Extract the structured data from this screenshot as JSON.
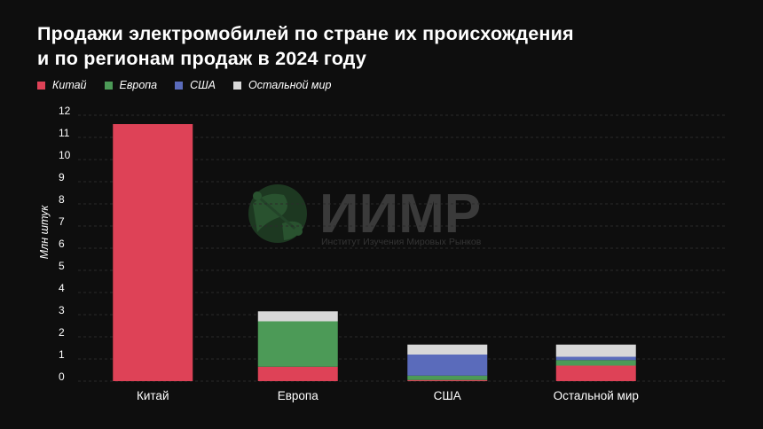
{
  "title_line1": "Продажи электромобилей по стране их происхождения",
  "title_line2": "и по регионам продаж в 2024 году",
  "watermark": {
    "name": "ИИМР",
    "subtitle": "Институт Изучения Мировых Рынков"
  },
  "colors": {
    "china": "#de4257",
    "europe": "#4c9a57",
    "usa": "#5a6bbb",
    "rest": "#d8d8d8",
    "background": "#0e0e0e"
  },
  "chart_data": {
    "type": "bar",
    "stacked": true,
    "title": "Продажи электромобилей по стране их происхождения и по регионам продаж в 2024 году",
    "xlabel": "",
    "ylabel": "Млн штук",
    "ylim": [
      0,
      12
    ],
    "yticks": [
      0,
      1,
      2,
      3,
      4,
      5,
      6,
      7,
      8,
      9,
      10,
      11,
      12
    ],
    "grid": true,
    "legend_position": "top-left",
    "categories": [
      "Китай",
      "Европа",
      "США",
      "Остальной мир"
    ],
    "series": [
      {
        "name": "Китай",
        "key": "china",
        "values": [
          11.6,
          0.65,
          0.05,
          0.7
        ]
      },
      {
        "name": "Европа",
        "key": "europe",
        "values": [
          0,
          2.05,
          0.2,
          0.25
        ]
      },
      {
        "name": "США",
        "key": "usa",
        "values": [
          0,
          0,
          0.95,
          0.15
        ]
      },
      {
        "name": "Остальной мир",
        "key": "rest",
        "values": [
          0,
          0.45,
          0.45,
          0.55
        ]
      }
    ]
  }
}
